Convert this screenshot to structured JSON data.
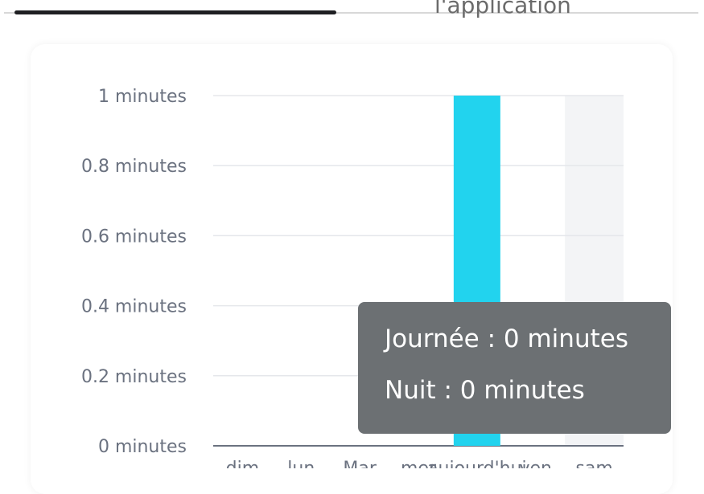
{
  "tabs": {
    "selected_tab_label": "",
    "other_tab_label": "l'application"
  },
  "chart_data": {
    "type": "bar",
    "categories": [
      "dim",
      "lun",
      "Mar",
      "mer",
      "aujourd'hui",
      "ven",
      "sam"
    ],
    "series": [
      {
        "name": "Journée",
        "values": [
          0,
          0,
          0,
          0,
          1,
          0,
          0
        ]
      }
    ],
    "highlighted_category": "sam",
    "y_ticks": [
      "0 minutes",
      "0.2 minutes",
      "0.4 minutes",
      "0.6 minutes",
      "0.8 minutes",
      "1 minutes"
    ],
    "ylim": [
      0,
      1
    ],
    "grid": true,
    "colors": {
      "bar": "#22d3ee",
      "highlight": "#f3f4f6"
    },
    "tooltip": {
      "line1_label": "Journée :",
      "line1_value": "0 minutes",
      "line2_label": "Nuit :",
      "line2_value": "0 minutes"
    }
  }
}
